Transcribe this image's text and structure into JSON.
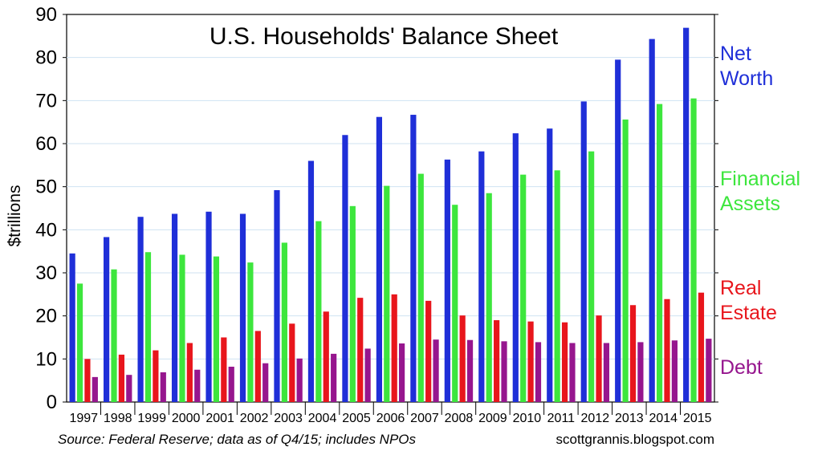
{
  "chart_data": {
    "type": "bar",
    "title": "U.S. Households' Balance Sheet",
    "ylabel": "$trillions",
    "xlabel": "",
    "ylim": [
      0,
      90
    ],
    "yticks": [
      0,
      10,
      20,
      30,
      40,
      50,
      60,
      70,
      80,
      90
    ],
    "grid": true,
    "legend_position": "right",
    "categories": [
      "1997",
      "1998",
      "1999",
      "2000",
      "2001",
      "2002",
      "2003",
      "2004",
      "2005",
      "2006",
      "2007",
      "2008",
      "2009",
      "2010",
      "2011",
      "2012",
      "2013",
      "2014",
      "2015"
    ],
    "series": [
      {
        "name": "Net Worth",
        "legend_lines": [
          "Net",
          "Worth"
        ],
        "color": "#1f2fd8",
        "values": [
          34.5,
          38.3,
          43.0,
          43.7,
          44.2,
          43.7,
          49.2,
          56.0,
          62.0,
          66.2,
          66.7,
          56.3,
          58.2,
          62.4,
          63.5,
          69.8,
          79.5,
          84.3,
          86.9
        ]
      },
      {
        "name": "Financial Assets",
        "legend_lines": [
          "Financial",
          "Assets"
        ],
        "color": "#3de63d",
        "values": [
          27.5,
          30.8,
          34.8,
          34.2,
          33.8,
          32.4,
          37.0,
          42.0,
          45.5,
          50.2,
          53.0,
          45.8,
          48.5,
          52.8,
          53.8,
          58.2,
          65.6,
          69.2,
          70.5
        ]
      },
      {
        "name": "Real Estate",
        "legend_lines": [
          "Real",
          "Estate"
        ],
        "color": "#e8161c",
        "values": [
          10.0,
          11.0,
          12.0,
          13.7,
          15.0,
          16.5,
          18.2,
          21.0,
          24.2,
          25.0,
          23.5,
          20.1,
          19.0,
          18.7,
          18.5,
          20.1,
          22.5,
          23.9,
          25.4
        ]
      },
      {
        "name": "Debt",
        "legend_lines": [
          "Debt"
        ],
        "color": "#96168e",
        "values": [
          5.8,
          6.3,
          6.9,
          7.5,
          8.2,
          9.0,
          10.1,
          11.2,
          12.4,
          13.6,
          14.5,
          14.4,
          14.1,
          13.9,
          13.7,
          13.7,
          13.9,
          14.3,
          14.7
        ]
      }
    ]
  },
  "footer": {
    "source": "Source: Federal Reserve; data as of Q4/15; includes NPOs",
    "credit": "scottgrannis.blogspot.com"
  }
}
